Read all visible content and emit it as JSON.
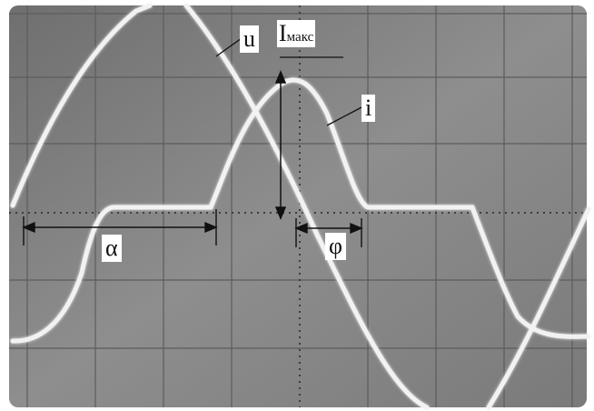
{
  "labels": {
    "voltage": "u",
    "current_max_main": "I",
    "current_max_sub": "макс",
    "current": "i",
    "alpha": "α",
    "phi": "φ"
  },
  "colors": {
    "paper": "#ffffff",
    "screen": "#8a8a8a",
    "trace": "#f2f2f2",
    "ink": "#111111"
  }
}
